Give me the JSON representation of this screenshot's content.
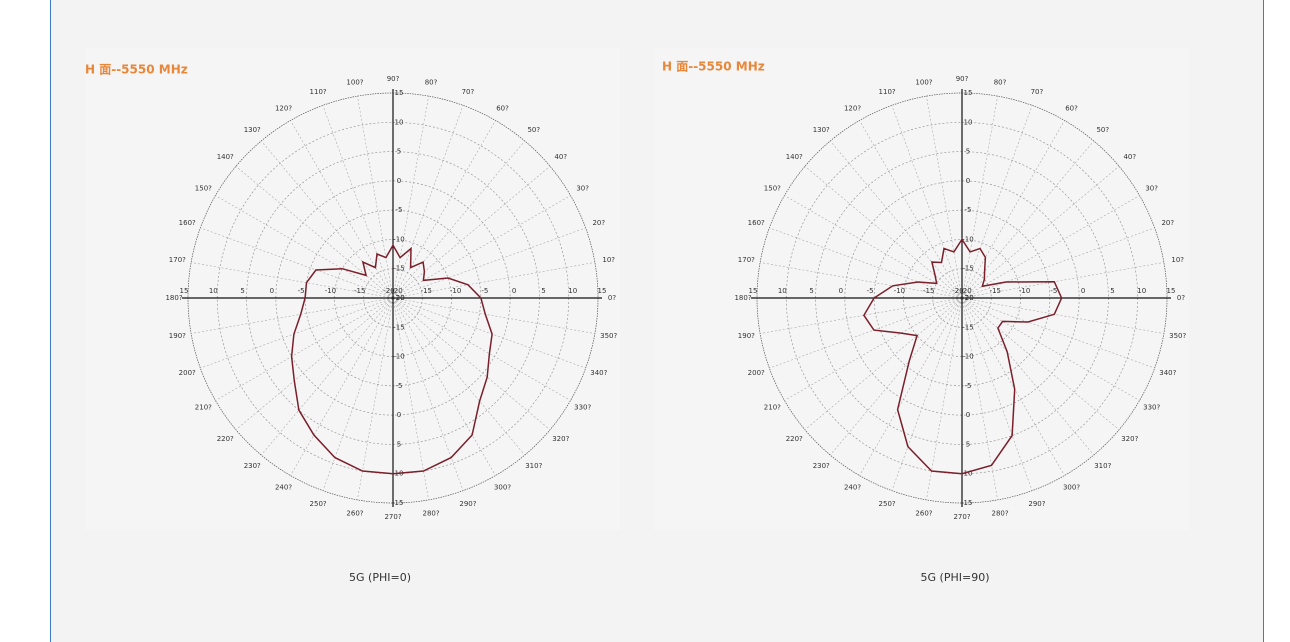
{
  "chart_data": [
    {
      "type": "polar",
      "title": "H 面--5550 MHz",
      "caption": "5G (PHI=0)",
      "color": "#7a1f2b",
      "x": [
        0,
        10,
        20,
        30,
        40,
        50,
        60,
        70,
        80,
        90,
        100,
        110,
        120,
        130,
        140,
        150,
        160,
        170,
        180,
        190,
        200,
        210,
        220,
        230,
        240,
        250,
        260,
        270,
        280,
        290,
        300,
        310,
        320,
        330,
        340,
        350
      ],
      "values": [
        -5,
        -7,
        -10,
        -14,
        -13,
        -12,
        -14,
        -11,
        -13,
        -11,
        -13,
        -12,
        -14,
        -12,
        -14,
        -10,
        -6,
        -5,
        -5,
        -4,
        -2,
        0,
        2,
        5,
        7,
        9,
        10,
        10,
        10,
        9,
        7,
        3,
        1,
        -1,
        -2,
        -4
      ],
      "ylim": [
        -20,
        15
      ],
      "yticks": [
        -20,
        -15,
        -10,
        -5,
        0,
        5,
        10,
        15
      ],
      "xticks": [
        {
          "value": 0,
          "label": "0?"
        },
        {
          "value": 10,
          "label": "10?"
        },
        {
          "value": 20,
          "label": "20?"
        },
        {
          "value": 30,
          "label": "30?"
        },
        {
          "value": 40,
          "label": "40?"
        },
        {
          "value": 50,
          "label": "50?"
        },
        {
          "value": 60,
          "label": "60?"
        },
        {
          "value": 70,
          "label": "70?"
        },
        {
          "value": 80,
          "label": "80?"
        },
        {
          "value": 90,
          "label": "90?"
        },
        {
          "value": 100,
          "label": "100?"
        },
        {
          "value": 110,
          "label": "110?"
        },
        {
          "value": 120,
          "label": "120?"
        },
        {
          "value": 130,
          "label": "130?"
        },
        {
          "value": 140,
          "label": "140?"
        },
        {
          "value": 150,
          "label": "150?"
        },
        {
          "value": 160,
          "label": "160?"
        },
        {
          "value": 170,
          "label": "170?"
        },
        {
          "value": 180,
          "label": "180?"
        },
        {
          "value": 190,
          "label": "190?"
        },
        {
          "value": 200,
          "label": "200?"
        },
        {
          "value": 210,
          "label": "210?"
        },
        {
          "value": 220,
          "label": "220?"
        },
        {
          "value": 230,
          "label": "230?"
        },
        {
          "value": 240,
          "label": "240?"
        },
        {
          "value": 250,
          "label": "250?"
        },
        {
          "value": 260,
          "label": "260?"
        },
        {
          "value": 270,
          "label": "270?"
        },
        {
          "value": 280,
          "label": "280?"
        },
        {
          "value": 290,
          "label": "290?"
        },
        {
          "value": 300,
          "label": "300?"
        },
        {
          "value": 310,
          "label": "310?"
        },
        {
          "value": 320,
          "label": "320?"
        },
        {
          "value": 330,
          "label": "330?"
        },
        {
          "value": 340,
          "label": "340?"
        },
        {
          "value": 350,
          "label": "350?"
        }
      ],
      "grid": true
    },
    {
      "type": "polar",
      "title": "H 面--5550 MHz",
      "caption": "5G (PHI=90)",
      "color": "#7a1f2b",
      "x": [
        0,
        10,
        20,
        30,
        40,
        50,
        60,
        70,
        80,
        90,
        100,
        110,
        120,
        130,
        140,
        150,
        160,
        170,
        180,
        190,
        200,
        210,
        220,
        230,
        240,
        250,
        260,
        270,
        280,
        290,
        300,
        310,
        320,
        330,
        340,
        350
      ],
      "values": [
        -3,
        -4,
        -12,
        -16,
        -15,
        -14,
        -12,
        -11,
        -12,
        -10,
        -12,
        -11,
        -13,
        -12,
        -14,
        -15,
        -12,
        -8,
        -5,
        -3,
        -4,
        -8,
        -10,
        -6,
        2,
        7,
        10,
        10,
        9,
        5,
        -2,
        -8,
        -12,
        -12,
        -8,
        -4
      ],
      "ylim": [
        -20,
        15
      ],
      "yticks": [
        -20,
        -15,
        -10,
        -5,
        0,
        5,
        10,
        15
      ],
      "xticks": [
        {
          "value": 0,
          "label": "0?"
        },
        {
          "value": 10,
          "label": "10?"
        },
        {
          "value": 20,
          "label": "20?"
        },
        {
          "value": 30,
          "label": "30?"
        },
        {
          "value": 40,
          "label": "40?"
        },
        {
          "value": 50,
          "label": "50?"
        },
        {
          "value": 60,
          "label": "60?"
        },
        {
          "value": 70,
          "label": "70?"
        },
        {
          "value": 80,
          "label": "80?"
        },
        {
          "value": 90,
          "label": "90?"
        },
        {
          "value": 100,
          "label": "100?"
        },
        {
          "value": 110,
          "label": "110?"
        },
        {
          "value": 120,
          "label": "120?"
        },
        {
          "value": 130,
          "label": "130?"
        },
        {
          "value": 140,
          "label": "140?"
        },
        {
          "value": 150,
          "label": "150?"
        },
        {
          "value": 160,
          "label": "160?"
        },
        {
          "value": 170,
          "label": "170?"
        },
        {
          "value": 180,
          "label": "180?"
        },
        {
          "value": 190,
          "label": "190?"
        },
        {
          "value": 200,
          "label": "200?"
        },
        {
          "value": 210,
          "label": "210?"
        },
        {
          "value": 220,
          "label": "220?"
        },
        {
          "value": 230,
          "label": "230?"
        },
        {
          "value": 240,
          "label": "240?"
        },
        {
          "value": 250,
          "label": "250?"
        },
        {
          "value": 260,
          "label": "260?"
        },
        {
          "value": 270,
          "label": "270?"
        },
        {
          "value": 280,
          "label": "280?"
        },
        {
          "value": 290,
          "label": "290?"
        },
        {
          "value": 300,
          "label": "300?"
        },
        {
          "value": 310,
          "label": "310?"
        },
        {
          "value": 320,
          "label": "320?"
        },
        {
          "value": 330,
          "label": "330?"
        },
        {
          "value": 340,
          "label": "340?"
        },
        {
          "value": 350,
          "label": "350?"
        }
      ],
      "grid": true
    }
  ]
}
